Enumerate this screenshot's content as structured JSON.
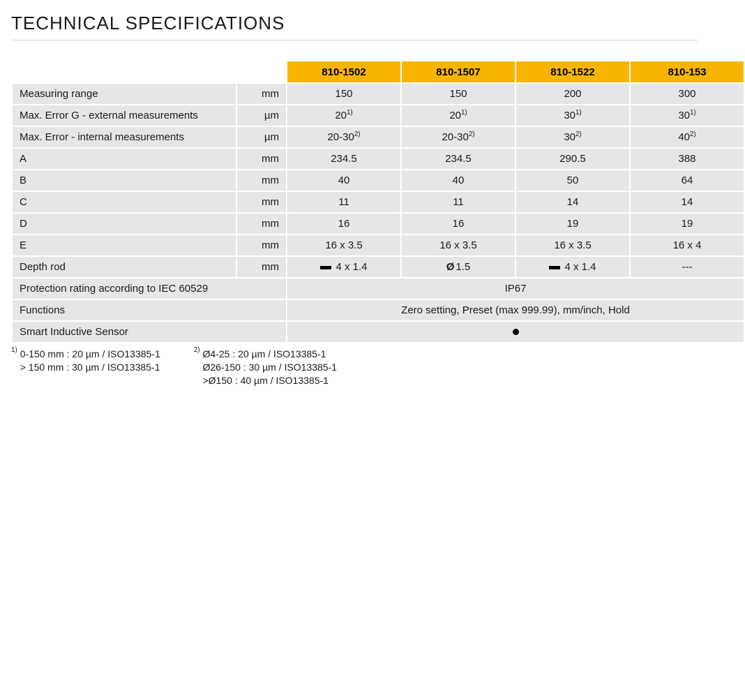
{
  "title": "TECHNICAL SPECIFICATIONS",
  "colors": {
    "header_bg": "#f7b500",
    "cell_bg": "#e6e6e6",
    "text": "#1a1a1a",
    "rule": "#d0d0d0"
  },
  "columns": [
    "810-1502",
    "810-1507",
    "810-1522",
    "810-153"
  ],
  "rows": [
    {
      "label": "Measuring range",
      "unit": "mm",
      "vals": [
        "150",
        "150",
        "200",
        "300"
      ]
    },
    {
      "label": "Max. Error G - external measurements",
      "unit": "µm",
      "vals": [
        "20",
        "20",
        "30",
        "30"
      ],
      "sup": [
        "1)",
        "1)",
        "1)",
        "1)"
      ]
    },
    {
      "label": "Max. Error - internal measurements",
      "unit": "µm",
      "vals": [
        "20-30",
        "20-30",
        "30",
        "40"
      ],
      "sup": [
        "2)",
        "2)",
        "2)",
        "2)"
      ]
    },
    {
      "label": "A",
      "unit": "mm",
      "vals": [
        "234.5",
        "234.5",
        "290.5",
        "388"
      ]
    },
    {
      "label": "B",
      "unit": "mm",
      "vals": [
        "40",
        "40",
        "50",
        "64"
      ]
    },
    {
      "label": "C",
      "unit": "mm",
      "vals": [
        "11",
        "11",
        "14",
        "14"
      ]
    },
    {
      "label": "D",
      "unit": "mm",
      "vals": [
        "16",
        "16",
        "19",
        "19"
      ]
    },
    {
      "label": "E",
      "unit": "mm",
      "vals": [
        "16 x 3.5",
        "16 x 3.5",
        "16 x 3.5",
        "16 x 4"
      ]
    },
    {
      "label": "Depth rod",
      "unit": "mm",
      "vals": [
        "4 x 1.4",
        "1.5",
        "4 x 1.4",
        "---"
      ],
      "icons": [
        "rect",
        "dia",
        "rect",
        ""
      ]
    },
    {
      "label": "Protection rating according to IEC 60529",
      "unit": "",
      "merged": "IP67"
    },
    {
      "label": "Functions",
      "unit": "",
      "merged": "Zero setting, Preset (max 999.99), mm/inch, Hold"
    },
    {
      "label": "Smart Inductive Sensor",
      "unit": "",
      "merged_bullet": true
    }
  ],
  "footnotes": [
    {
      "marker": "1)",
      "lines": [
        "0-150 mm : 20 µm / ISO13385-1",
        "> 150 mm : 30 µm / ISO13385-1"
      ]
    },
    {
      "marker": "2)",
      "lines": [
        "Ø4-25 : 20 µm / ISO13385-1",
        "Ø26-150 : 30 µm / ISO13385-1",
        ">Ø150 : 40 µm / ISO13385-1"
      ]
    }
  ]
}
